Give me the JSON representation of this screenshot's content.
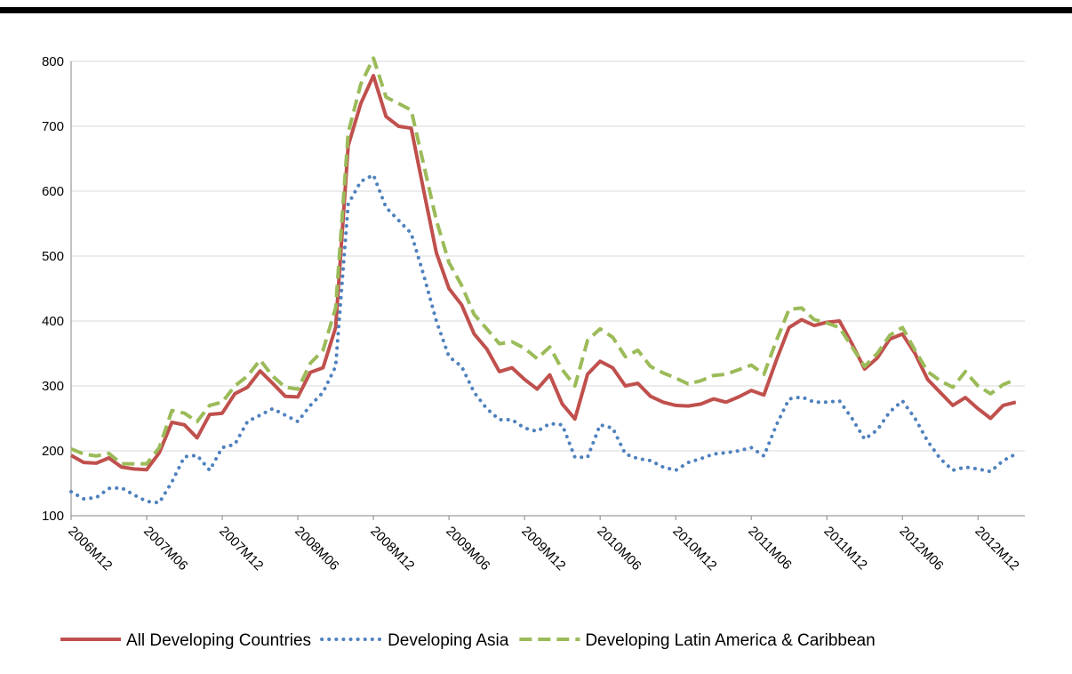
{
  "chart_data": {
    "type": "line",
    "categories": [
      "2006M12",
      null,
      null,
      null,
      null,
      null,
      "2007M06",
      null,
      null,
      null,
      null,
      null,
      "2007M12",
      null,
      null,
      null,
      null,
      null,
      "2008M06",
      null,
      null,
      null,
      null,
      null,
      "2008M12",
      null,
      null,
      null,
      null,
      null,
      "2009M06",
      null,
      null,
      null,
      null,
      null,
      "2009M12",
      null,
      null,
      null,
      null,
      null,
      "2010M06",
      null,
      null,
      null,
      null,
      null,
      "2010M12",
      null,
      null,
      null,
      null,
      null,
      "2011M06",
      null,
      null,
      null,
      null,
      null,
      "2011M12",
      null,
      null,
      null,
      null,
      null,
      "2012M06",
      null,
      null,
      null,
      null,
      null,
      "2012M12",
      null,
      null,
      null
    ],
    "series": [
      {
        "name": "All Developing Countries",
        "color": "#c0504d",
        "style": "solid",
        "values": [
          193,
          182,
          181,
          189,
          175,
          172,
          171,
          197,
          244,
          240,
          220,
          256,
          258,
          288,
          298,
          323,
          304,
          284,
          283,
          321,
          328,
          390,
          670,
          735,
          778,
          715,
          700,
          697,
          600,
          505,
          450,
          425,
          380,
          357,
          322,
          328,
          310,
          295,
          317,
          272,
          249,
          318,
          338,
          328,
          300,
          304,
          284,
          275,
          270,
          269,
          272,
          280,
          275,
          283,
          293,
          286,
          340,
          390,
          402,
          393,
          398,
          400,
          365,
          326,
          343,
          372,
          380,
          350,
          310,
          290,
          270,
          282,
          265,
          250,
          270,
          275
        ]
      },
      {
        "name": "Developing Asia",
        "color": "#4f81bd",
        "style": "dotted",
        "values": [
          137,
          126,
          128,
          142,
          143,
          132,
          122,
          120,
          152,
          191,
          193,
          170,
          205,
          210,
          245,
          255,
          265,
          255,
          245,
          270,
          290,
          330,
          580,
          615,
          625,
          575,
          555,
          535,
          470,
          400,
          345,
          330,
          290,
          265,
          248,
          248,
          235,
          230,
          242,
          240,
          190,
          190,
          240,
          235,
          195,
          188,
          185,
          175,
          170,
          182,
          188,
          195,
          197,
          200,
          205,
          192,
          240,
          280,
          283,
          275,
          275,
          277,
          250,
          218,
          232,
          260,
          277,
          250,
          215,
          188,
          170,
          175,
          172,
          168,
          185,
          195
        ]
      },
      {
        "name": "Developing Latin America & Caribbean",
        "color": "#9bbb59",
        "style": "dashed",
        "values": [
          203,
          195,
          192,
          196,
          180,
          180,
          180,
          205,
          262,
          258,
          245,
          270,
          275,
          300,
          315,
          340,
          315,
          298,
          295,
          335,
          355,
          420,
          690,
          765,
          805,
          745,
          735,
          725,
          640,
          555,
          490,
          455,
          410,
          388,
          365,
          368,
          358,
          342,
          360,
          325,
          300,
          370,
          388,
          375,
          345,
          355,
          330,
          320,
          312,
          303,
          308,
          316,
          318,
          325,
          332,
          318,
          370,
          418,
          420,
          402,
          397,
          390,
          360,
          330,
          350,
          378,
          390,
          355,
          322,
          308,
          298,
          322,
          300,
          288,
          302,
          310
        ]
      }
    ],
    "ylim": [
      100,
      800
    ],
    "yticks": [
      100,
      200,
      300,
      400,
      500,
      600,
      700,
      800
    ],
    "grid": true,
    "legend": "bottom"
  }
}
